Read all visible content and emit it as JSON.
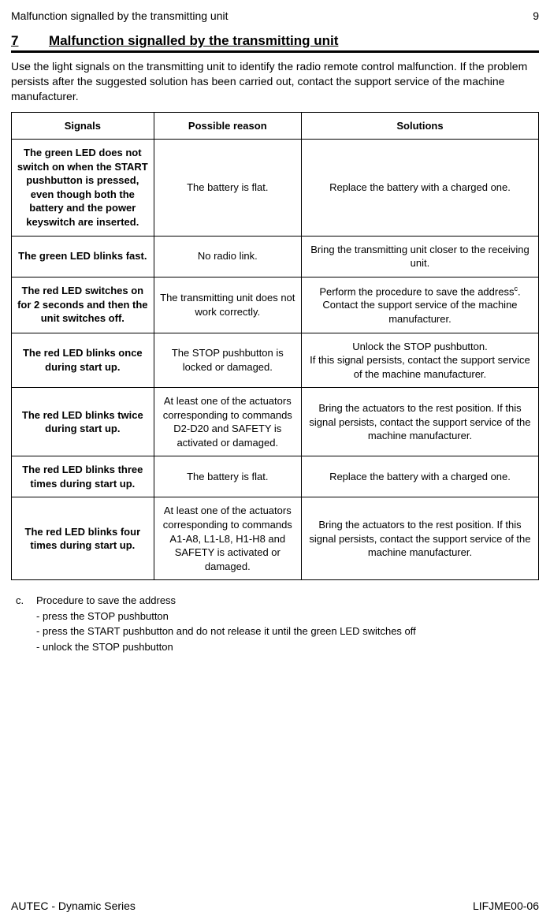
{
  "header": {
    "running_title": "Malfunction signalled by the transmitting unit",
    "page_number": "9"
  },
  "section": {
    "number": "7",
    "title": "Malfunction signalled by the transmitting unit"
  },
  "intro": "Use the light signals on the transmitting unit to identify the radio remote control malfunction. If the problem persists after the suggested solution has been carried out, contact the support service of the machine manufacturer.",
  "table": {
    "columns": [
      "Signals",
      "Possible reason",
      "Solutions"
    ],
    "col_widths_pct": [
      27,
      28,
      45
    ],
    "rows": [
      {
        "signal": "The green LED does not switch on when the START pushbutton is pressed, even though both the battery and the power keyswitch are inserted.",
        "reason": "The battery is flat.",
        "solution": "Replace the battery with a charged one."
      },
      {
        "signal": "The green LED blinks fast.",
        "reason": "No radio link.",
        "solution": "Bring the transmitting unit closer to the receiving unit."
      },
      {
        "signal": "The red LED switches on for 2 seconds and then the unit switches off.",
        "reason": "The transmitting unit does not work correctly.",
        "solution_html": "Perform the procedure to save the address<sup>c</sup>.<br>Contact the support service of the machine manufacturer."
      },
      {
        "signal": "The red LED blinks once during start up.",
        "reason": "The STOP pushbutton is locked or damaged.",
        "solution_html": "Unlock the STOP pushbutton.<br>If this signal persists, contact the support service of the machine manufacturer."
      },
      {
        "signal": "The red LED blinks twice during start up.",
        "reason": "At least one of the actuators corresponding to commands D2-D20 and SAFETY is activated or damaged.",
        "solution": "Bring the actuators to the rest position. If this signal persists, contact the support service of the machine manufacturer."
      },
      {
        "signal": "The red LED blinks three times during start up.",
        "reason": "The battery is flat.",
        "solution": "Replace the battery with a charged one."
      },
      {
        "signal": "The red LED blinks four times during start up.",
        "reason": "At least one of the actuators corresponding to commands A1-A8, L1-L8, H1-H8 and SAFETY is activated or damaged.",
        "solution": "Bring the actuators to the rest position. If this signal persists, contact the support service of the machine manufacturer."
      }
    ]
  },
  "footnote": {
    "letter": "c.",
    "title": "Procedure to save the address",
    "items": [
      "- press the STOP pushbutton",
      "- press the START pushbutton and do not release it until the green LED switches off",
      "- unlock the STOP pushbutton"
    ]
  },
  "footer": {
    "left": "AUTEC - Dynamic Series",
    "right": "LIFJME00-06"
  }
}
